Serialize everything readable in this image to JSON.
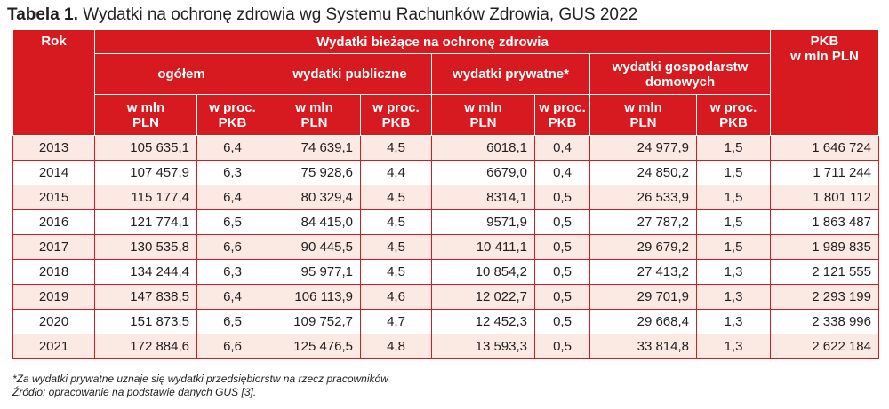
{
  "title": {
    "label": "Tabela 1.",
    "text": "Wydatki na ochronę zdrowia wg Systemu Rachunków Zdrowia, GUS 2022"
  },
  "header": {
    "rok": "Rok",
    "group": "Wydatki bieżące na ochronę zdrowia",
    "pkb": "PKB\nw mln PLN",
    "sub": [
      "ogółem",
      "wydatki publiczne",
      "wydatki prywatne*",
      "wydatki gospodarstw domowych"
    ],
    "unit_mln": "w mln\nPLN",
    "unit_proc": "w proc.\nPKB"
  },
  "rows": [
    [
      "2013",
      "105 635,1",
      "6,4",
      "74 639,1",
      "4,5",
      "6018,1",
      "0,4",
      "24 977,9",
      "1,5",
      "1 646 724"
    ],
    [
      "2014",
      "107 457,9",
      "6,3",
      "75 928,6",
      "4,4",
      "6679,0",
      "0,4",
      "24 850,2",
      "1,5",
      "1 711 244"
    ],
    [
      "2015",
      "115 177,4",
      "6,4",
      "80 329,4",
      "4,5",
      "8314,1",
      "0,5",
      "26 533,9",
      "1,5",
      "1 801 112"
    ],
    [
      "2016",
      "121 774,1",
      "6,5",
      "84 415,0",
      "4,5",
      "9571,9",
      "0,5",
      "27 787,2",
      "1,5",
      "1 863 487"
    ],
    [
      "2017",
      "130 535,8",
      "6,6",
      "90 445,5",
      "4,5",
      "10 411,1",
      "0,5",
      "29 679,2",
      "1,5",
      "1 989 835"
    ],
    [
      "2018",
      "134 244,4",
      "6,3",
      "95 977,1",
      "4,5",
      "10 854,2",
      "0,5",
      "27 413,2",
      "1,3",
      "2 121 555"
    ],
    [
      "2019",
      "147 838,5",
      "6,4",
      "106 113,9",
      "4,6",
      "12 022,7",
      "0,5",
      "29 701,9",
      "1,3",
      "2 293 199"
    ],
    [
      "2020",
      "151 873,5",
      "6,5",
      "109 752,7",
      "4,7",
      "12 452,3",
      "0,5",
      "29 668,4",
      "1,3",
      "2 338 996"
    ],
    [
      "2021",
      "172 884,6",
      "6,6",
      "125 476,5",
      "4,8",
      "13 593,3",
      "0,5",
      "33 814,8",
      "1,3",
      "2 622 184"
    ]
  ],
  "notes": {
    "footnote": "*Za wydatki prywatne uznaje się wydatki przedsiębiorstw na rzecz pracowników",
    "source": "Źródło: opracowanie na podstawie danych GUS [3]."
  },
  "colors": {
    "header_bg": "#d71920",
    "stripe": "#fbe9e4",
    "text": "#231f20"
  }
}
